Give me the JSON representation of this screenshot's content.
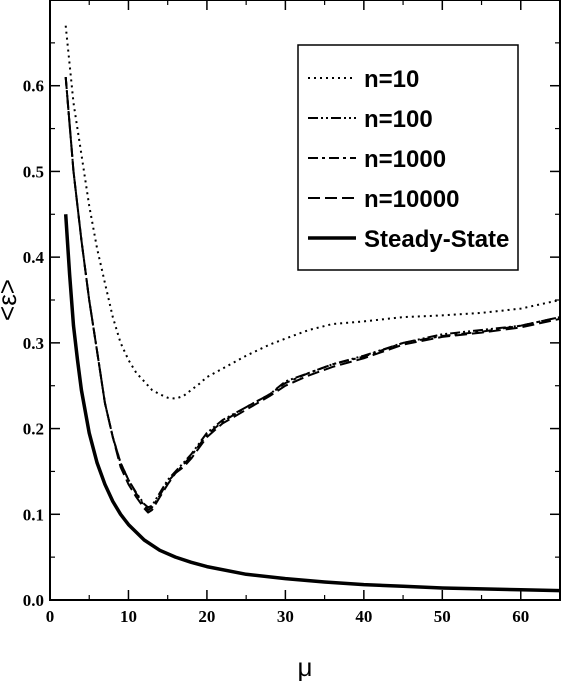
{
  "chart_data": {
    "type": "line",
    "xlabel": "μ",
    "ylabel": "<ε>",
    "xlim": [
      0,
      65
    ],
    "ylim": [
      0,
      0.7
    ],
    "xticks": [
      0,
      10,
      20,
      30,
      40,
      50,
      60
    ],
    "xtick_labels": [
      "0",
      "10",
      "20",
      "30",
      "40",
      "50",
      "60"
    ],
    "yticks": [
      0,
      0.1,
      0.2,
      0.3,
      0.4,
      0.5,
      0.6
    ],
    "ytick_labels": [
      "0.0",
      "0.1",
      "0.2",
      "0.3",
      "0.4",
      "0.5",
      "0.6"
    ],
    "grid": false,
    "legend": "top-right",
    "series": [
      {
        "name": "n=10",
        "style": "dotted",
        "x": [
          2,
          3,
          4,
          5,
          6,
          7,
          8,
          9,
          10,
          11,
          12,
          13,
          14,
          15,
          16,
          17,
          18,
          19,
          20,
          22,
          25,
          28,
          30,
          33,
          36,
          40,
          45,
          50,
          55,
          60,
          65
        ],
        "y": [
          0.67,
          0.58,
          0.52,
          0.46,
          0.41,
          0.37,
          0.33,
          0.3,
          0.28,
          0.265,
          0.255,
          0.245,
          0.24,
          0.236,
          0.235,
          0.238,
          0.245,
          0.252,
          0.26,
          0.27,
          0.285,
          0.298,
          0.305,
          0.315,
          0.322,
          0.325,
          0.33,
          0.332,
          0.335,
          0.34,
          0.35
        ]
      },
      {
        "name": "n=100",
        "style": "dash-dot-dot",
        "x": [
          2,
          3,
          4,
          5,
          6,
          7,
          8,
          9,
          10,
          11,
          12,
          12.5,
          13,
          14,
          15,
          16,
          17,
          18,
          20,
          22,
          25,
          28,
          30,
          33,
          36,
          40,
          45,
          50,
          55,
          60,
          65
        ],
        "y": [
          0.61,
          0.5,
          0.42,
          0.35,
          0.29,
          0.23,
          0.19,
          0.16,
          0.14,
          0.125,
          0.112,
          0.108,
          0.11,
          0.125,
          0.14,
          0.15,
          0.16,
          0.17,
          0.195,
          0.21,
          0.225,
          0.24,
          0.255,
          0.265,
          0.275,
          0.285,
          0.3,
          0.31,
          0.315,
          0.32,
          0.33
        ]
      },
      {
        "name": "n=1000",
        "style": "dash-dot",
        "x": [
          2,
          3,
          4,
          5,
          6,
          7,
          8,
          9,
          10,
          11,
          12,
          12.5,
          13,
          14,
          15,
          16,
          17,
          18,
          20,
          22,
          25,
          28,
          30,
          33,
          36,
          40,
          45,
          50,
          55,
          60,
          65
        ],
        "y": [
          0.61,
          0.5,
          0.42,
          0.35,
          0.29,
          0.23,
          0.19,
          0.16,
          0.14,
          0.124,
          0.11,
          0.105,
          0.108,
          0.122,
          0.138,
          0.148,
          0.158,
          0.168,
          0.193,
          0.208,
          0.225,
          0.24,
          0.253,
          0.265,
          0.275,
          0.284,
          0.3,
          0.308,
          0.313,
          0.32,
          0.33
        ]
      },
      {
        "name": "n=10000",
        "style": "dashed",
        "x": [
          2,
          3,
          4,
          5,
          6,
          7,
          8,
          9,
          10,
          11,
          12,
          12.5,
          13,
          14,
          15,
          16,
          17,
          18,
          20,
          22,
          25,
          28,
          30,
          33,
          36,
          40,
          45,
          50,
          55,
          60,
          65
        ],
        "y": [
          0.61,
          0.5,
          0.42,
          0.35,
          0.29,
          0.23,
          0.19,
          0.155,
          0.135,
          0.12,
          0.107,
          0.102,
          0.105,
          0.12,
          0.135,
          0.148,
          0.155,
          0.165,
          0.19,
          0.206,
          0.222,
          0.238,
          0.25,
          0.262,
          0.272,
          0.282,
          0.298,
          0.307,
          0.312,
          0.318,
          0.328
        ]
      },
      {
        "name": "Steady-State",
        "style": "solid",
        "x": [
          2,
          2.5,
          3,
          3.5,
          4,
          5,
          6,
          7,
          8,
          9,
          10,
          12,
          14,
          16,
          18,
          20,
          25,
          30,
          35,
          40,
          45,
          50,
          55,
          60,
          65
        ],
        "y": [
          0.45,
          0.38,
          0.32,
          0.28,
          0.245,
          0.195,
          0.16,
          0.135,
          0.115,
          0.1,
          0.088,
          0.07,
          0.058,
          0.05,
          0.044,
          0.039,
          0.03,
          0.025,
          0.021,
          0.018,
          0.016,
          0.014,
          0.013,
          0.012,
          0.011
        ]
      }
    ]
  }
}
